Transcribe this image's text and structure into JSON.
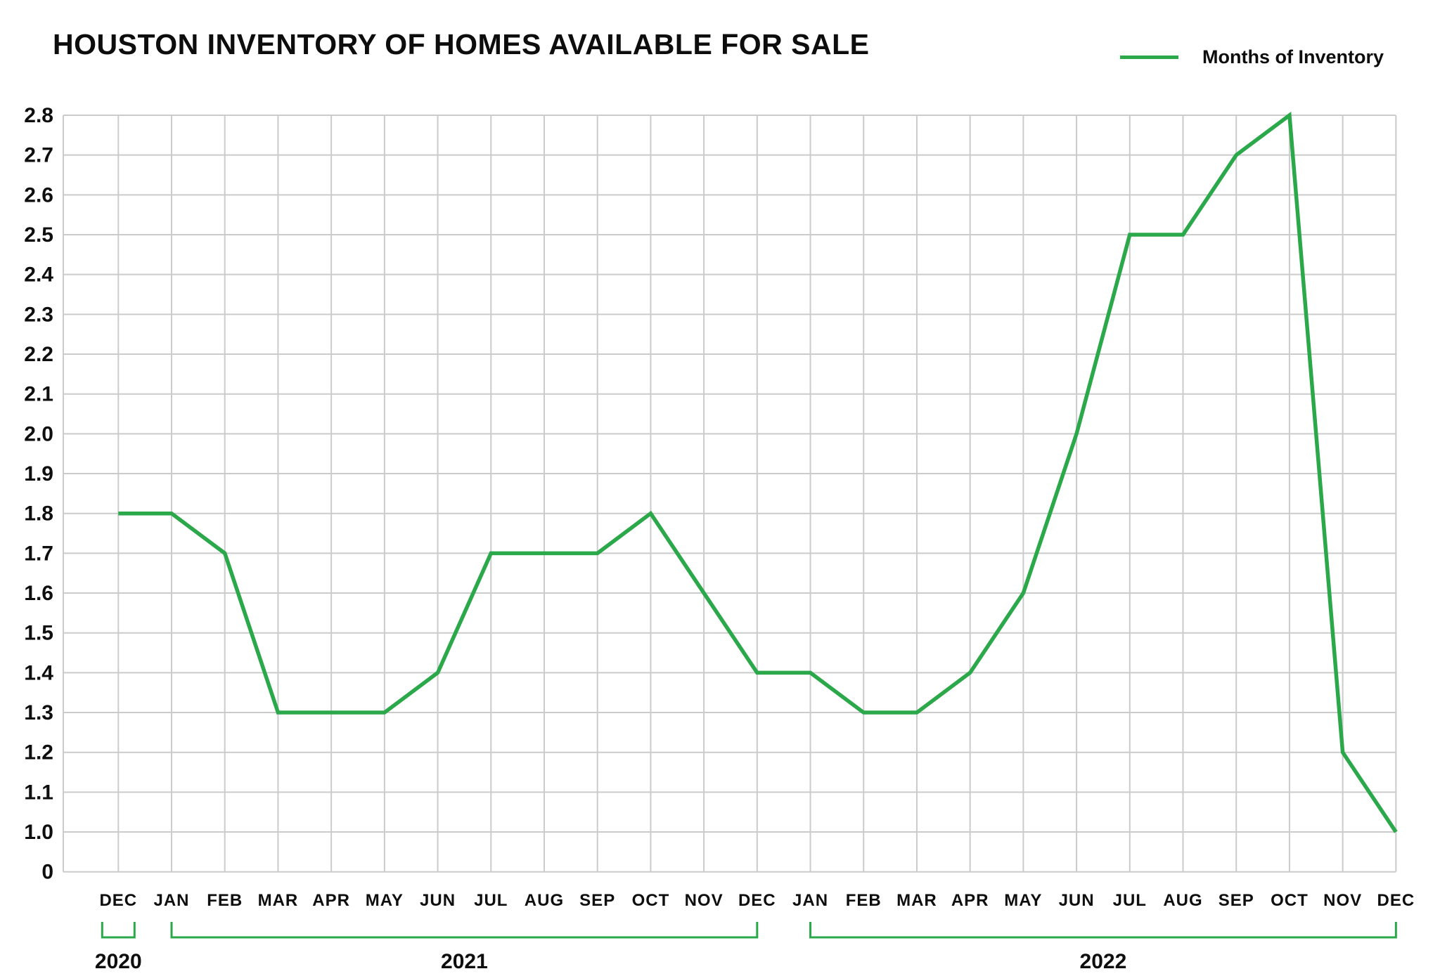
{
  "title": "HOUSTON INVENTORY OF HOMES AVAILABLE FOR SALE",
  "legend": {
    "label": "Months of Inventory"
  },
  "colors": {
    "line": "#2BA84A",
    "grid": "#CBCBCB",
    "text": "#0E0E0E"
  },
  "chart_data": {
    "type": "line",
    "title": "HOUSTON INVENTORY OF HOMES AVAILABLE FOR SALE",
    "categories": [
      "DEC",
      "JAN",
      "FEB",
      "MAR",
      "APR",
      "MAY",
      "JUN",
      "JUL",
      "AUG",
      "SEP",
      "OCT",
      "NOV",
      "DEC",
      "JAN",
      "FEB",
      "MAR",
      "APR",
      "MAY",
      "JUN",
      "JUL",
      "AUG",
      "SEP",
      "OCT",
      "NOV",
      "DEC"
    ],
    "series": [
      {
        "name": "Months of Inventory",
        "values": [
          1.8,
          1.8,
          1.7,
          1.3,
          1.3,
          1.3,
          1.4,
          1.7,
          1.7,
          1.7,
          1.8,
          1.6,
          1.4,
          1.4,
          1.3,
          1.3,
          1.4,
          1.6,
          2.0,
          2.5,
          2.5,
          2.7,
          2.8,
          1.2,
          1.0
        ]
      }
    ],
    "year_groups": [
      {
        "label": "2020",
        "start": 0,
        "end": 0
      },
      {
        "label": "2021",
        "start": 1,
        "end": 12
      },
      {
        "label": "2022",
        "start": 13,
        "end": 24
      }
    ],
    "y_ticks": [
      "2.8",
      "2.7",
      "2.6",
      "2.5",
      "2.4",
      "2.3",
      "2.2",
      "2.1",
      "2.0",
      "1.9",
      "1.8",
      "1.7",
      "1.6",
      "1.5",
      "1.4",
      "1.3",
      "1.2",
      "1.1",
      "1.0",
      "0"
    ],
    "ylim": [
      1.0,
      2.8
    ],
    "y_axis_break_to_zero": true,
    "grid": "on",
    "legend_position": "top-right",
    "xlabel": "",
    "ylabel": ""
  }
}
